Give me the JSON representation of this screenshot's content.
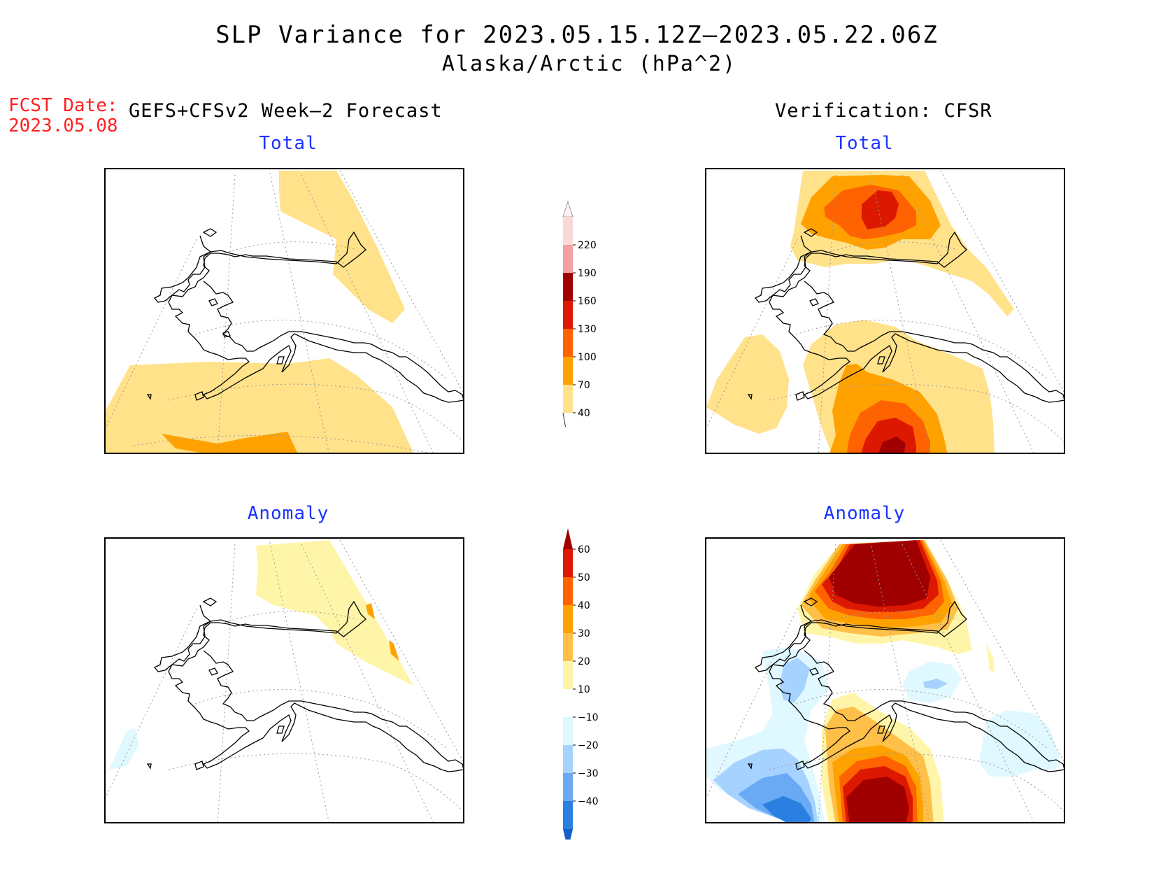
{
  "title": {
    "line1": "SLP Variance for 2023.05.15.12Z–2023.05.22.06Z",
    "line2": "Alaska/Arctic (hPa^2)"
  },
  "forecast": {
    "label": "FCST Date:",
    "date": "2023.05.08"
  },
  "columns": {
    "left": "GEFS+CFSv2 Week–2 Forecast",
    "right": "Verification: CFSR"
  },
  "panels": {
    "forecast_total": "Total",
    "verification_total": "Total",
    "forecast_anomaly": "Anomaly",
    "verification_anomaly": "Anomaly"
  },
  "colorbar_total": {
    "levels": [
      "220",
      "190",
      "160",
      "130",
      "100",
      "70",
      "40"
    ],
    "colors": [
      "#fbd9d9",
      "#f4a0a0",
      "#a00000",
      "#dd1800",
      "#ff6200",
      "#ffa200",
      "#ffe28a"
    ]
  },
  "colorbar_anomaly": {
    "levels": [
      "60",
      "50",
      "40",
      "30",
      "20",
      "10",
      "−10",
      "−20",
      "−30",
      "−40"
    ],
    "colors": [
      "#a00000",
      "#dd1800",
      "#ff6200",
      "#ffa200",
      "#ffc04a",
      "#fff5a8",
      "#ffffff",
      "#e0f8ff",
      "#a6d2ff",
      "#6aa9f4",
      "#2a7fe0",
      "#1460cc"
    ]
  }
}
